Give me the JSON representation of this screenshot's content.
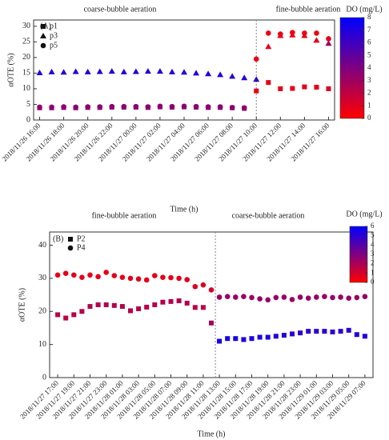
{
  "chart_data": [
    {
      "type": "scatter",
      "annotations": [
        "coarse-bubble aeration",
        "fine-bubble aeration",
        "(A)"
      ],
      "xlabel": "Time (h)",
      "ylabel": "αOTE (%)",
      "xlim": [
        "2018/11/26 15:30",
        "2018/11/27 16:30"
      ],
      "xticks": [
        "2018/11/26 16:00",
        "2018/11/26 18:00",
        "2018/11/26 20:00",
        "2018/11/26 22:00",
        "2018/11/27 00:00",
        "2018/11/27 02:00",
        "2018/11/27 04:00",
        "2018/11/27 06:00",
        "2018/11/27 08:00",
        "2018/11/27 10:00",
        "2018/11/27 12:00",
        "2018/11/27 14:00",
        "2018/11/27 16:00"
      ],
      "ylim": [
        0,
        32
      ],
      "yticks": [
        0,
        5,
        10,
        15,
        20,
        25,
        30
      ],
      "divider": "2018/11/27 10:00",
      "x": [
        "2018/11/26 16:00",
        "2018/11/26 17:00",
        "2018/11/26 18:00",
        "2018/11/26 19:00",
        "2018/11/26 20:00",
        "2018/11/26 21:00",
        "2018/11/26 22:00",
        "2018/11/26 23:00",
        "2018/11/27 00:00",
        "2018/11/27 01:00",
        "2018/11/27 02:00",
        "2018/11/27 03:00",
        "2018/11/27 04:00",
        "2018/11/27 05:00",
        "2018/11/27 06:00",
        "2018/11/27 07:00",
        "2018/11/27 08:00",
        "2018/11/27 09:00",
        "2018/11/27 10:00",
        "2018/11/27 11:00",
        "2018/11/27 12:00",
        "2018/11/27 13:00",
        "2018/11/27 14:00",
        "2018/11/27 15:00",
        "2018/11/27 16:00"
      ],
      "colorbar": {
        "label": "DO (mg/L)",
        "lim": [
          0,
          8
        ],
        "ticks": [
          0,
          1,
          2,
          3,
          4,
          5,
          6,
          7,
          8
        ],
        "colors": [
          "#ff0000",
          "#800080",
          "#0000ff"
        ]
      },
      "series": [
        {
          "name": "p1",
          "marker": "square",
          "values": [
            3.9,
            3.9,
            4.0,
            3.9,
            4.0,
            4.0,
            4.1,
            4.1,
            4.1,
            4.0,
            4.2,
            4.1,
            4.2,
            4.1,
            4.0,
            4.0,
            3.9,
            3.7,
            9.3,
            12.0,
            10.0,
            10.1,
            10.6,
            10.5,
            10.0
          ],
          "color_values": [
            3.6,
            3.6,
            3.6,
            3.6,
            3.6,
            3.6,
            3.6,
            3.6,
            3.6,
            3.6,
            3.6,
            3.6,
            3.6,
            3.6,
            3.6,
            3.6,
            3.6,
            3.6,
            0.8,
            0.8,
            0.8,
            0.8,
            0.8,
            0.8,
            1.0
          ]
        },
        {
          "name": "p3",
          "marker": "triangle",
          "values": [
            15.1,
            15.4,
            15.3,
            15.5,
            15.4,
            15.5,
            15.6,
            15.4,
            15.5,
            15.6,
            15.6,
            15.4,
            15.3,
            15.0,
            14.8,
            14.5,
            14.0,
            13.5,
            13.0,
            23.5,
            27.0,
            27.2,
            27.0,
            25.5,
            24.5
          ],
          "color_values": [
            7,
            7,
            7,
            7,
            7,
            7,
            7,
            7,
            7,
            7,
            7,
            7,
            7,
            7,
            7,
            7,
            6.8,
            6.8,
            6.5,
            0.8,
            0.8,
            0.8,
            0.8,
            1.0,
            3.0
          ]
        },
        {
          "name": "p5",
          "marker": "circle",
          "values": [
            4.1,
            4.1,
            4.2,
            4.1,
            4.2,
            4.2,
            4.3,
            4.3,
            4.3,
            4.2,
            4.4,
            4.3,
            4.4,
            4.3,
            4.2,
            4.2,
            4.0,
            3.9,
            19.5,
            27.8,
            27.5,
            28.0,
            27.8,
            27.8,
            26.0
          ],
          "color_values": [
            3.6,
            3.6,
            3.6,
            3.6,
            3.6,
            3.6,
            3.6,
            3.6,
            3.6,
            3.6,
            3.6,
            3.6,
            3.6,
            3.6,
            3.6,
            3.6,
            3.6,
            3.6,
            0.5,
            0.5,
            0.5,
            0.5,
            0.5,
            0.5,
            0.8
          ]
        }
      ]
    },
    {
      "type": "scatter",
      "annotations": [
        "fine-bubble aeration",
        "coarse-bubble aeration",
        "(B)"
      ],
      "xlabel": "Time  (h)",
      "ylabel": "αOTE (%)",
      "xlim": [
        "2018/11/27 16:00",
        "2018/11/29 08:00"
      ],
      "xticks": [
        "2018/11/27 17:00",
        "2018/11/27 19:00",
        "2018/11/27 21:00",
        "2018/11/27 23:00",
        "2018/11/28 01:00",
        "2018/11/28 03:00",
        "2018/11/28 05:00",
        "2018/11/28 07:00",
        "2018/11/28 09:00",
        "2018/11/28 11:00",
        "2018/11/28 13:00",
        "2018/11/28 15:00",
        "2018/11/28 17:00",
        "2018/11/28 19:00",
        "2018/11/28 21:00",
        "2018/11/28 23:00",
        "2018/11/29 01:00",
        "2018/11/29 03:00",
        "2018/11/29 05:00",
        "2018/11/29 07:00"
      ],
      "ylim": [
        0,
        44
      ],
      "yticks": [
        0,
        10,
        20,
        30,
        40
      ],
      "divider": "2018/11/28 12:30",
      "x": [
        "2018/11/27 17:00",
        "2018/11/27 18:00",
        "2018/11/27 19:00",
        "2018/11/27 20:00",
        "2018/11/27 21:00",
        "2018/11/27 22:00",
        "2018/11/27 23:00",
        "2018/11/28 00:00",
        "2018/11/28 01:00",
        "2018/11/28 02:00",
        "2018/11/28 03:00",
        "2018/11/28 04:00",
        "2018/11/28 05:00",
        "2018/11/28 06:00",
        "2018/11/28 07:00",
        "2018/11/28 08:00",
        "2018/11/28 09:00",
        "2018/11/28 10:00",
        "2018/11/28 11:00",
        "2018/11/28 12:00",
        "2018/11/28 13:00",
        "2018/11/28 14:00",
        "2018/11/28 15:00",
        "2018/11/28 16:00",
        "2018/11/28 17:00",
        "2018/11/28 18:00",
        "2018/11/28 19:00",
        "2018/11/28 20:00",
        "2018/11/28 21:00",
        "2018/11/28 22:00",
        "2018/11/28 23:00",
        "2018/11/29 00:00",
        "2018/11/29 01:00",
        "2018/11/29 02:00",
        "2018/11/29 03:00",
        "2018/11/29 04:00",
        "2018/11/29 05:00",
        "2018/11/29 06:00",
        "2018/11/29 07:00"
      ],
      "colorbar": {
        "label": "DO (mg/L)",
        "lim": [
          0,
          6
        ],
        "ticks": [
          0,
          1,
          2,
          3,
          4,
          5,
          6
        ],
        "colors": [
          "#ff0000",
          "#800080",
          "#0000ff"
        ]
      },
      "series": [
        {
          "name": "P2",
          "marker": "square",
          "values": [
            19.0,
            18.0,
            19.0,
            20.0,
            21.5,
            22.0,
            22.0,
            21.8,
            21.5,
            20.2,
            20.8,
            21.3,
            22.0,
            22.8,
            23.0,
            23.2,
            22.5,
            21.2,
            21.2,
            16.5,
            11.0,
            11.8,
            11.8,
            11.5,
            11.8,
            12.2,
            12.2,
            12.5,
            12.8,
            13.2,
            13.5,
            14.0,
            14.0,
            14.0,
            13.8,
            14.0,
            14.3,
            13.0,
            12.5
          ],
          "color_values": [
            1.6,
            1.6,
            1.7,
            1.7,
            1.8,
            1.8,
            1.8,
            1.8,
            1.8,
            1.7,
            1.7,
            1.7,
            1.8,
            1.8,
            1.8,
            1.8,
            1.7,
            1.6,
            1.6,
            2.2,
            5.5,
            5.5,
            5.4,
            5.4,
            5.4,
            5.3,
            5.3,
            5.2,
            5.2,
            5.1,
            5.0,
            5.0,
            5.0,
            5.0,
            5.0,
            5.0,
            5.0,
            5.2,
            5.3
          ]
        },
        {
          "name": "P4",
          "marker": "circle",
          "values": [
            31.0,
            31.5,
            31.0,
            30.3,
            31.0,
            30.5,
            31.8,
            30.8,
            30.3,
            30.0,
            29.8,
            29.5,
            30.8,
            30.3,
            30.2,
            30.0,
            29.6,
            27.5,
            28.0,
            26.5,
            24.3,
            24.5,
            24.3,
            24.5,
            24.2,
            23.8,
            23.5,
            24.2,
            24.3,
            23.6,
            24.3,
            24.0,
            24.3,
            24.5,
            24.2,
            24.3,
            24.0,
            24.2,
            24.5
          ],
          "color_values": [
            0.6,
            0.6,
            0.6,
            0.6,
            0.6,
            0.6,
            0.6,
            0.6,
            0.6,
            0.7,
            0.7,
            0.7,
            0.6,
            0.6,
            0.6,
            0.6,
            0.7,
            0.8,
            0.8,
            1.0,
            2.4,
            2.4,
            2.4,
            2.4,
            2.4,
            2.4,
            2.4,
            2.4,
            2.4,
            2.4,
            2.4,
            2.4,
            2.4,
            2.4,
            2.4,
            2.4,
            2.4,
            2.4,
            2.4
          ]
        }
      ]
    }
  ]
}
